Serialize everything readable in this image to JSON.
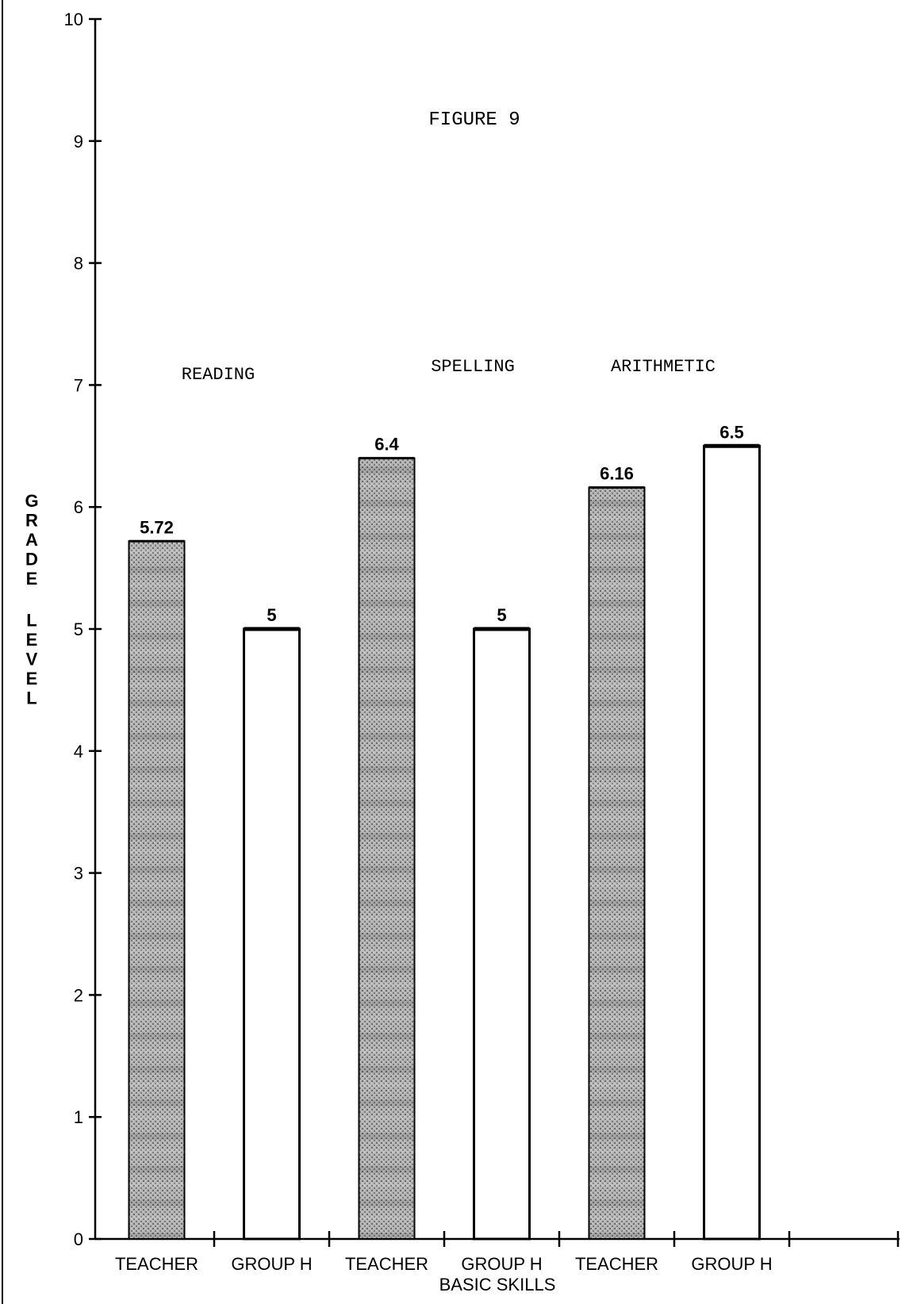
{
  "chart_data": {
    "type": "bar",
    "title": "FIGURE 9",
    "xlabel": "BASIC SKILLS",
    "ylabel": "GRADE LEVEL",
    "ylim": [
      0,
      10
    ],
    "yticks": [
      "0",
      "1",
      "2",
      "3",
      "4",
      "5",
      "6",
      "7",
      "8",
      "9",
      "10"
    ],
    "groups": [
      "READING",
      "SPELLING",
      "ARITHMETIC"
    ],
    "categories": [
      "TEACHER",
      "GROUP H",
      "TEACHER",
      "GROUP H",
      "TEACHER",
      "GROUP H"
    ],
    "values": [
      5.72,
      5,
      6.4,
      5,
      6.16,
      6.5
    ],
    "value_labels": [
      "5.72",
      "5",
      "6.4",
      "5",
      "6.16",
      "6.5"
    ],
    "bar_styles": [
      "shaded",
      "open",
      "shaded",
      "open",
      "shaded",
      "open"
    ],
    "grid": false,
    "legend": "none",
    "colors": {
      "shaded": "#a8a8a8",
      "open": "#ffffff",
      "ink": "#000000"
    }
  }
}
